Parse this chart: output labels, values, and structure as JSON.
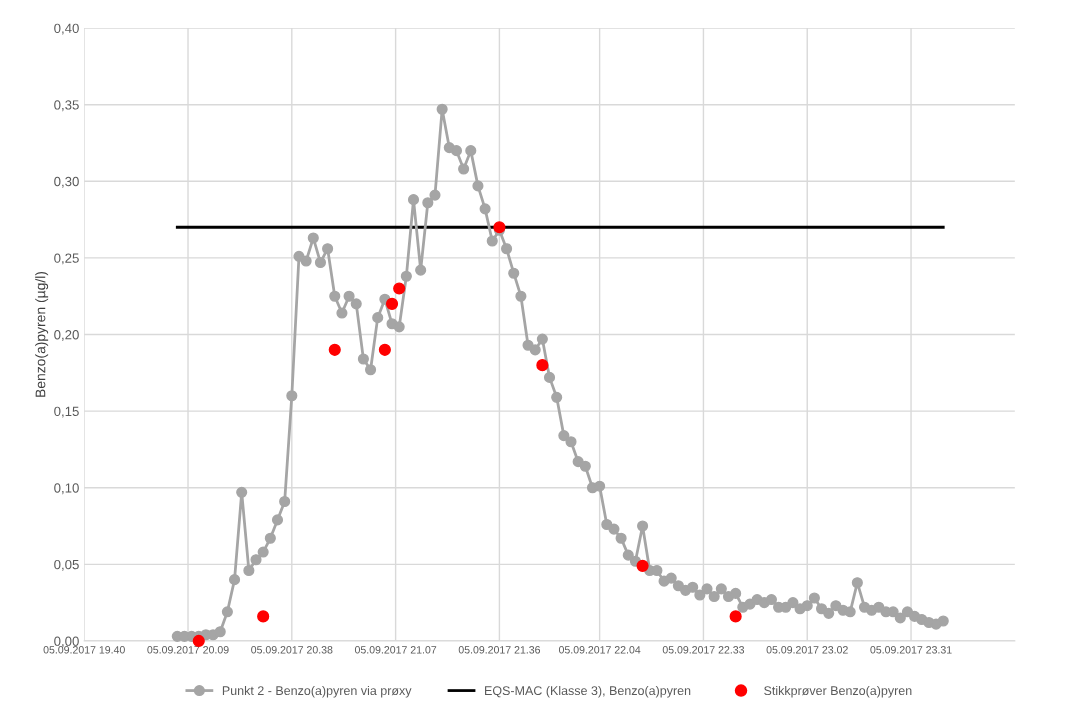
{
  "chart_data": {
    "type": "line",
    "ylabel": "Benzo(a)pyren (µg/l)",
    "xlim": [
      "2017-09-05T19:40",
      "2017-09-06T00:00"
    ],
    "xticks": [
      {
        "value": "2017-09-05T19:40",
        "label": "05.09.2017 19.40"
      },
      {
        "value": "2017-09-05T20:09",
        "label": "05.09.2017 20.09"
      },
      {
        "value": "2017-09-05T20:38",
        "label": "05.09.2017 20.38"
      },
      {
        "value": "2017-09-05T21:07",
        "label": "05.09.2017 21.07"
      },
      {
        "value": "2017-09-05T21:36",
        "label": "05.09.2017 21.36"
      },
      {
        "value": "2017-09-05T22:04",
        "label": "05.09.2017 22.04"
      },
      {
        "value": "2017-09-05T22:33",
        "label": "05.09.2017 22.33"
      },
      {
        "value": "2017-09-05T23:02",
        "label": "05.09.2017 23.02"
      },
      {
        "value": "2017-09-05T23:31",
        "label": "05.09.2017 23.31"
      }
    ],
    "ylim": [
      0,
      0.4
    ],
    "yticks": [
      {
        "value": 0,
        "label": "0,00"
      },
      {
        "value": 0.05,
        "label": "0,05"
      },
      {
        "value": 0.1,
        "label": "0,10"
      },
      {
        "value": 0.15,
        "label": "0,15"
      },
      {
        "value": 0.2,
        "label": "0,20"
      },
      {
        "value": 0.25,
        "label": "0,25"
      },
      {
        "value": 0.3,
        "label": "0,30"
      },
      {
        "value": 0.35,
        "label": "0,35"
      },
      {
        "value": 0.4,
        "label": "0,40"
      }
    ],
    "grid": true,
    "legend": "bottom",
    "series": [
      {
        "name": "Punkt 2 - Benzo(a)pyren via prøxy",
        "type": "line",
        "marker": "circle",
        "color": "#a5a5a5",
        "x": [
          "2017-09-05T20:06",
          "2017-09-05T20:08",
          "2017-09-05T20:10",
          "2017-09-05T20:12",
          "2017-09-05T20:14",
          "2017-09-05T20:16",
          "2017-09-05T20:18",
          "2017-09-05T20:20",
          "2017-09-05T20:22",
          "2017-09-05T20:24",
          "2017-09-05T20:26",
          "2017-09-05T20:28",
          "2017-09-05T20:30",
          "2017-09-05T20:32",
          "2017-09-05T20:34",
          "2017-09-05T20:36",
          "2017-09-05T20:38",
          "2017-09-05T20:40",
          "2017-09-05T20:42",
          "2017-09-05T20:44",
          "2017-09-05T20:46",
          "2017-09-05T20:48",
          "2017-09-05T20:50",
          "2017-09-05T20:52",
          "2017-09-05T20:54",
          "2017-09-05T20:56",
          "2017-09-05T20:58",
          "2017-09-05T21:00",
          "2017-09-05T21:02",
          "2017-09-05T21:04",
          "2017-09-05T21:06",
          "2017-09-05T21:08",
          "2017-09-05T21:10",
          "2017-09-05T21:12",
          "2017-09-05T21:14",
          "2017-09-05T21:16",
          "2017-09-05T21:18",
          "2017-09-05T21:20",
          "2017-09-05T21:22",
          "2017-09-05T21:24",
          "2017-09-05T21:26",
          "2017-09-05T21:28",
          "2017-09-05T21:30",
          "2017-09-05T21:32",
          "2017-09-05T21:34",
          "2017-09-05T21:36",
          "2017-09-05T21:38",
          "2017-09-05T21:40",
          "2017-09-05T21:42",
          "2017-09-05T21:44",
          "2017-09-05T21:46",
          "2017-09-05T21:48",
          "2017-09-05T21:50",
          "2017-09-05T21:52",
          "2017-09-05T21:54",
          "2017-09-05T21:56",
          "2017-09-05T21:58",
          "2017-09-05T22:00",
          "2017-09-05T22:02",
          "2017-09-05T22:04",
          "2017-09-05T22:06",
          "2017-09-05T22:08",
          "2017-09-05T22:10",
          "2017-09-05T22:12",
          "2017-09-05T22:14",
          "2017-09-05T22:16",
          "2017-09-05T22:18",
          "2017-09-05T22:20",
          "2017-09-05T22:22",
          "2017-09-05T22:24",
          "2017-09-05T22:26",
          "2017-09-05T22:28",
          "2017-09-05T22:30",
          "2017-09-05T22:32",
          "2017-09-05T22:34",
          "2017-09-05T22:36",
          "2017-09-05T22:38",
          "2017-09-05T22:40",
          "2017-09-05T22:42",
          "2017-09-05T22:44",
          "2017-09-05T22:46",
          "2017-09-05T22:48",
          "2017-09-05T22:50",
          "2017-09-05T22:52",
          "2017-09-05T22:54",
          "2017-09-05T22:56",
          "2017-09-05T22:58",
          "2017-09-05T23:00",
          "2017-09-05T23:02",
          "2017-09-05T23:04",
          "2017-09-05T23:06",
          "2017-09-05T23:08",
          "2017-09-05T23:10",
          "2017-09-05T23:12",
          "2017-09-05T23:14",
          "2017-09-05T23:16",
          "2017-09-05T23:18",
          "2017-09-05T23:20",
          "2017-09-05T23:22",
          "2017-09-05T23:24",
          "2017-09-05T23:26",
          "2017-09-05T23:28",
          "2017-09-05T23:30",
          "2017-09-05T23:32",
          "2017-09-05T23:34",
          "2017-09-05T23:36",
          "2017-09-05T23:38",
          "2017-09-05T23:40"
        ],
        "values": [
          0.003,
          0.003,
          0.003,
          0.003,
          0.004,
          0.004,
          0.006,
          0.019,
          0.04,
          0.097,
          0.046,
          0.053,
          0.058,
          0.067,
          0.079,
          0.091,
          0.16,
          0.251,
          0.248,
          0.263,
          0.247,
          0.256,
          0.225,
          0.214,
          0.225,
          0.22,
          0.184,
          0.177,
          0.211,
          0.223,
          0.207,
          0.205,
          0.238,
          0.288,
          0.242,
          0.286,
          0.291,
          0.347,
          0.322,
          0.32,
          0.308,
          0.32,
          0.297,
          0.282,
          0.261,
          0.268,
          0.256,
          0.24,
          0.225,
          0.193,
          0.19,
          0.197,
          0.172,
          0.159,
          0.134,
          0.13,
          0.117,
          0.114,
          0.1,
          0.101,
          0.076,
          0.073,
          0.067,
          0.056,
          0.052,
          0.075,
          0.046,
          0.046,
          0.039,
          0.041,
          0.036,
          0.033,
          0.035,
          0.03,
          0.034,
          0.029,
          0.034,
          0.029,
          0.031,
          0.022,
          0.024,
          0.027,
          0.025,
          0.027,
          0.022,
          0.022,
          0.025,
          0.021,
          0.023,
          0.028,
          0.021,
          0.018,
          0.023,
          0.02,
          0.019,
          0.038,
          0.022,
          0.02,
          0.022,
          0.019,
          0.019,
          0.015,
          0.019,
          0.016,
          0.014,
          0.012,
          0.011,
          0.013
        ]
      },
      {
        "name": "EQS-MAC (Klasse 3), Benzo(a)pyren",
        "type": "line",
        "marker": "none",
        "color": "#000000",
        "x": [
          "2017-09-05T20:06",
          "2017-09-05T23:40"
        ],
        "values": [
          0.27,
          0.27
        ]
      },
      {
        "name": "Stikkprøver Benzo(a)pyren",
        "type": "scatter",
        "marker": "circle",
        "color": "#ff0000",
        "x": [
          "2017-09-05T20:12",
          "2017-09-05T20:30",
          "2017-09-05T20:50",
          "2017-09-05T21:04",
          "2017-09-05T21:06",
          "2017-09-05T21:08",
          "2017-09-05T21:36",
          "2017-09-05T21:48",
          "2017-09-05T22:16",
          "2017-09-05T22:42"
        ],
        "values": [
          0.0,
          0.016,
          0.19,
          0.19,
          0.22,
          0.23,
          0.27,
          0.18,
          0.049,
          0.016
        ]
      }
    ]
  }
}
